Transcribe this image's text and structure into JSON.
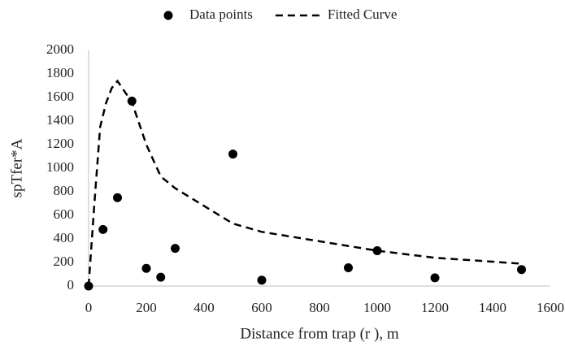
{
  "chart_data": {
    "type": "scatter",
    "x_label": "Distance from trap (r ), m",
    "y_label": "spTfer*A",
    "xlim": [
      0,
      1600
    ],
    "xticks": [
      0,
      200,
      400,
      600,
      800,
      1000,
      1200,
      1400,
      1600
    ],
    "ylim": [
      0,
      2000
    ],
    "yticks": [
      0,
      200,
      400,
      600,
      800,
      1000,
      1200,
      1400,
      1600,
      1800,
      2000
    ],
    "grid": false,
    "legend": "top",
    "series": [
      {
        "name": "Data points",
        "type": "scatter",
        "color": "#000000",
        "x": [
          0,
          50,
          100,
          150,
          200,
          250,
          300,
          500,
          600,
          900,
          1000,
          1200,
          1500
        ],
        "values": [
          0,
          480,
          750,
          1570,
          150,
          75,
          320,
          1120,
          50,
          155,
          300,
          70,
          140
        ]
      },
      {
        "name": "Fitted Curve",
        "type": "line",
        "dashed": true,
        "color": "#000000",
        "x": [
          0,
          20,
          40,
          60,
          80,
          100,
          150,
          200,
          250,
          300,
          400,
          500,
          600,
          800,
          1000,
          1200,
          1500
        ],
        "values": [
          0,
          700,
          1350,
          1550,
          1680,
          1740,
          1560,
          1200,
          930,
          830,
          680,
          530,
          460,
          380,
          300,
          240,
          190
        ]
      }
    ]
  }
}
